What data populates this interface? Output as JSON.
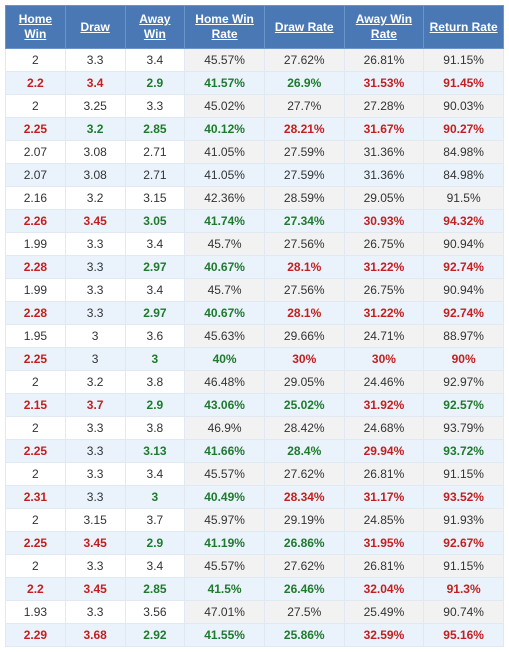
{
  "table": {
    "headers": {
      "home_win": "Home Win",
      "draw": "Draw",
      "away_win": "Away Win",
      "home_win_rate": "Home Win Rate",
      "draw_rate": "Draw Rate",
      "away_win_rate": "Away Win Rate",
      "return_rate": "Return Rate"
    },
    "colors": {
      "header_bg": "#4a78b5",
      "header_fg": "#ffffff",
      "row_even_left": "#ffffff",
      "row_even_right": "#f2f2f2",
      "row_odd": "#eaf3fb",
      "border": "#e0e8f2",
      "text_normal": "#333333",
      "text_red": "#c22020",
      "text_green": "#1f7a2e"
    },
    "col_widths_pct": [
      12,
      12,
      12,
      16,
      16,
      16,
      16
    ],
    "rows": [
      {
        "cells": [
          {
            "v": "2",
            "c": "normal"
          },
          {
            "v": "3.3",
            "c": "normal"
          },
          {
            "v": "3.4",
            "c": "normal"
          },
          {
            "v": "45.57%",
            "c": "normal"
          },
          {
            "v": "27.62%",
            "c": "normal"
          },
          {
            "v": "26.81%",
            "c": "normal"
          },
          {
            "v": "91.15%",
            "c": "normal"
          }
        ]
      },
      {
        "cells": [
          {
            "v": "2.2",
            "c": "red"
          },
          {
            "v": "3.4",
            "c": "red"
          },
          {
            "v": "2.9",
            "c": "green"
          },
          {
            "v": "41.57%",
            "c": "green"
          },
          {
            "v": "26.9%",
            "c": "green"
          },
          {
            "v": "31.53%",
            "c": "red"
          },
          {
            "v": "91.45%",
            "c": "red"
          }
        ]
      },
      {
        "cells": [
          {
            "v": "2",
            "c": "normal"
          },
          {
            "v": "3.25",
            "c": "normal"
          },
          {
            "v": "3.3",
            "c": "normal"
          },
          {
            "v": "45.02%",
            "c": "normal"
          },
          {
            "v": "27.7%",
            "c": "normal"
          },
          {
            "v": "27.28%",
            "c": "normal"
          },
          {
            "v": "90.03%",
            "c": "normal"
          }
        ]
      },
      {
        "cells": [
          {
            "v": "2.25",
            "c": "red"
          },
          {
            "v": "3.2",
            "c": "green"
          },
          {
            "v": "2.85",
            "c": "green"
          },
          {
            "v": "40.12%",
            "c": "green"
          },
          {
            "v": "28.21%",
            "c": "red"
          },
          {
            "v": "31.67%",
            "c": "red"
          },
          {
            "v": "90.27%",
            "c": "red"
          }
        ]
      },
      {
        "cells": [
          {
            "v": "2.07",
            "c": "normal"
          },
          {
            "v": "3.08",
            "c": "normal"
          },
          {
            "v": "2.71",
            "c": "normal"
          },
          {
            "v": "41.05%",
            "c": "normal"
          },
          {
            "v": "27.59%",
            "c": "normal"
          },
          {
            "v": "31.36%",
            "c": "normal"
          },
          {
            "v": "84.98%",
            "c": "normal"
          }
        ]
      },
      {
        "cells": [
          {
            "v": "2.07",
            "c": "normal"
          },
          {
            "v": "3.08",
            "c": "normal"
          },
          {
            "v": "2.71",
            "c": "normal"
          },
          {
            "v": "41.05%",
            "c": "normal"
          },
          {
            "v": "27.59%",
            "c": "normal"
          },
          {
            "v": "31.36%",
            "c": "normal"
          },
          {
            "v": "84.98%",
            "c": "normal"
          }
        ]
      },
      {
        "cells": [
          {
            "v": "2.16",
            "c": "normal"
          },
          {
            "v": "3.2",
            "c": "normal"
          },
          {
            "v": "3.15",
            "c": "normal"
          },
          {
            "v": "42.36%",
            "c": "normal"
          },
          {
            "v": "28.59%",
            "c": "normal"
          },
          {
            "v": "29.05%",
            "c": "normal"
          },
          {
            "v": "91.5%",
            "c": "normal"
          }
        ]
      },
      {
        "cells": [
          {
            "v": "2.26",
            "c": "red"
          },
          {
            "v": "3.45",
            "c": "red"
          },
          {
            "v": "3.05",
            "c": "green"
          },
          {
            "v": "41.74%",
            "c": "green"
          },
          {
            "v": "27.34%",
            "c": "green"
          },
          {
            "v": "30.93%",
            "c": "red"
          },
          {
            "v": "94.32%",
            "c": "red"
          }
        ]
      },
      {
        "cells": [
          {
            "v": "1.99",
            "c": "normal"
          },
          {
            "v": "3.3",
            "c": "normal"
          },
          {
            "v": "3.4",
            "c": "normal"
          },
          {
            "v": "45.7%",
            "c": "normal"
          },
          {
            "v": "27.56%",
            "c": "normal"
          },
          {
            "v": "26.75%",
            "c": "normal"
          },
          {
            "v": "90.94%",
            "c": "normal"
          }
        ]
      },
      {
        "cells": [
          {
            "v": "2.28",
            "c": "red"
          },
          {
            "v": "3.3",
            "c": "normal"
          },
          {
            "v": "2.97",
            "c": "green"
          },
          {
            "v": "40.67%",
            "c": "green"
          },
          {
            "v": "28.1%",
            "c": "red"
          },
          {
            "v": "31.22%",
            "c": "red"
          },
          {
            "v": "92.74%",
            "c": "red"
          }
        ]
      },
      {
        "cells": [
          {
            "v": "1.99",
            "c": "normal"
          },
          {
            "v": "3.3",
            "c": "normal"
          },
          {
            "v": "3.4",
            "c": "normal"
          },
          {
            "v": "45.7%",
            "c": "normal"
          },
          {
            "v": "27.56%",
            "c": "normal"
          },
          {
            "v": "26.75%",
            "c": "normal"
          },
          {
            "v": "90.94%",
            "c": "normal"
          }
        ]
      },
      {
        "cells": [
          {
            "v": "2.28",
            "c": "red"
          },
          {
            "v": "3.3",
            "c": "normal"
          },
          {
            "v": "2.97",
            "c": "green"
          },
          {
            "v": "40.67%",
            "c": "green"
          },
          {
            "v": "28.1%",
            "c": "red"
          },
          {
            "v": "31.22%",
            "c": "red"
          },
          {
            "v": "92.74%",
            "c": "red"
          }
        ]
      },
      {
        "cells": [
          {
            "v": "1.95",
            "c": "normal"
          },
          {
            "v": "3",
            "c": "normal"
          },
          {
            "v": "3.6",
            "c": "normal"
          },
          {
            "v": "45.63%",
            "c": "normal"
          },
          {
            "v": "29.66%",
            "c": "normal"
          },
          {
            "v": "24.71%",
            "c": "normal"
          },
          {
            "v": "88.97%",
            "c": "normal"
          }
        ]
      },
      {
        "cells": [
          {
            "v": "2.25",
            "c": "red"
          },
          {
            "v": "3",
            "c": "normal"
          },
          {
            "v": "3",
            "c": "green"
          },
          {
            "v": "40%",
            "c": "green"
          },
          {
            "v": "30%",
            "c": "red"
          },
          {
            "v": "30%",
            "c": "red"
          },
          {
            "v": "90%",
            "c": "red"
          }
        ]
      },
      {
        "cells": [
          {
            "v": "2",
            "c": "normal"
          },
          {
            "v": "3.2",
            "c": "normal"
          },
          {
            "v": "3.8",
            "c": "normal"
          },
          {
            "v": "46.48%",
            "c": "normal"
          },
          {
            "v": "29.05%",
            "c": "normal"
          },
          {
            "v": "24.46%",
            "c": "normal"
          },
          {
            "v": "92.97%",
            "c": "normal"
          }
        ]
      },
      {
        "cells": [
          {
            "v": "2.15",
            "c": "red"
          },
          {
            "v": "3.7",
            "c": "red"
          },
          {
            "v": "2.9",
            "c": "green"
          },
          {
            "v": "43.06%",
            "c": "green"
          },
          {
            "v": "25.02%",
            "c": "green"
          },
          {
            "v": "31.92%",
            "c": "red"
          },
          {
            "v": "92.57%",
            "c": "green"
          }
        ]
      },
      {
        "cells": [
          {
            "v": "2",
            "c": "normal"
          },
          {
            "v": "3.3",
            "c": "normal"
          },
          {
            "v": "3.8",
            "c": "normal"
          },
          {
            "v": "46.9%",
            "c": "normal"
          },
          {
            "v": "28.42%",
            "c": "normal"
          },
          {
            "v": "24.68%",
            "c": "normal"
          },
          {
            "v": "93.79%",
            "c": "normal"
          }
        ]
      },
      {
        "cells": [
          {
            "v": "2.25",
            "c": "red"
          },
          {
            "v": "3.3",
            "c": "normal"
          },
          {
            "v": "3.13",
            "c": "green"
          },
          {
            "v": "41.66%",
            "c": "green"
          },
          {
            "v": "28.4%",
            "c": "green"
          },
          {
            "v": "29.94%",
            "c": "red"
          },
          {
            "v": "93.72%",
            "c": "green"
          }
        ]
      },
      {
        "cells": [
          {
            "v": "2",
            "c": "normal"
          },
          {
            "v": "3.3",
            "c": "normal"
          },
          {
            "v": "3.4",
            "c": "normal"
          },
          {
            "v": "45.57%",
            "c": "normal"
          },
          {
            "v": "27.62%",
            "c": "normal"
          },
          {
            "v": "26.81%",
            "c": "normal"
          },
          {
            "v": "91.15%",
            "c": "normal"
          }
        ]
      },
      {
        "cells": [
          {
            "v": "2.31",
            "c": "red"
          },
          {
            "v": "3.3",
            "c": "normal"
          },
          {
            "v": "3",
            "c": "green"
          },
          {
            "v": "40.49%",
            "c": "green"
          },
          {
            "v": "28.34%",
            "c": "red"
          },
          {
            "v": "31.17%",
            "c": "red"
          },
          {
            "v": "93.52%",
            "c": "red"
          }
        ]
      },
      {
        "cells": [
          {
            "v": "2",
            "c": "normal"
          },
          {
            "v": "3.15",
            "c": "normal"
          },
          {
            "v": "3.7",
            "c": "normal"
          },
          {
            "v": "45.97%",
            "c": "normal"
          },
          {
            "v": "29.19%",
            "c": "normal"
          },
          {
            "v": "24.85%",
            "c": "normal"
          },
          {
            "v": "91.93%",
            "c": "normal"
          }
        ]
      },
      {
        "cells": [
          {
            "v": "2.25",
            "c": "red"
          },
          {
            "v": "3.45",
            "c": "red"
          },
          {
            "v": "2.9",
            "c": "green"
          },
          {
            "v": "41.19%",
            "c": "green"
          },
          {
            "v": "26.86%",
            "c": "green"
          },
          {
            "v": "31.95%",
            "c": "red"
          },
          {
            "v": "92.67%",
            "c": "red"
          }
        ]
      },
      {
        "cells": [
          {
            "v": "2",
            "c": "normal"
          },
          {
            "v": "3.3",
            "c": "normal"
          },
          {
            "v": "3.4",
            "c": "normal"
          },
          {
            "v": "45.57%",
            "c": "normal"
          },
          {
            "v": "27.62%",
            "c": "normal"
          },
          {
            "v": "26.81%",
            "c": "normal"
          },
          {
            "v": "91.15%",
            "c": "normal"
          }
        ]
      },
      {
        "cells": [
          {
            "v": "2.2",
            "c": "red"
          },
          {
            "v": "3.45",
            "c": "red"
          },
          {
            "v": "2.85",
            "c": "green"
          },
          {
            "v": "41.5%",
            "c": "green"
          },
          {
            "v": "26.46%",
            "c": "green"
          },
          {
            "v": "32.04%",
            "c": "red"
          },
          {
            "v": "91.3%",
            "c": "red"
          }
        ]
      },
      {
        "cells": [
          {
            "v": "1.93",
            "c": "normal"
          },
          {
            "v": "3.3",
            "c": "normal"
          },
          {
            "v": "3.56",
            "c": "normal"
          },
          {
            "v": "47.01%",
            "c": "normal"
          },
          {
            "v": "27.5%",
            "c": "normal"
          },
          {
            "v": "25.49%",
            "c": "normal"
          },
          {
            "v": "90.74%",
            "c": "normal"
          }
        ]
      },
      {
        "cells": [
          {
            "v": "2.29",
            "c": "red"
          },
          {
            "v": "3.68",
            "c": "red"
          },
          {
            "v": "2.92",
            "c": "green"
          },
          {
            "v": "41.55%",
            "c": "green"
          },
          {
            "v": "25.86%",
            "c": "green"
          },
          {
            "v": "32.59%",
            "c": "red"
          },
          {
            "v": "95.16%",
            "c": "red"
          }
        ]
      }
    ]
  }
}
